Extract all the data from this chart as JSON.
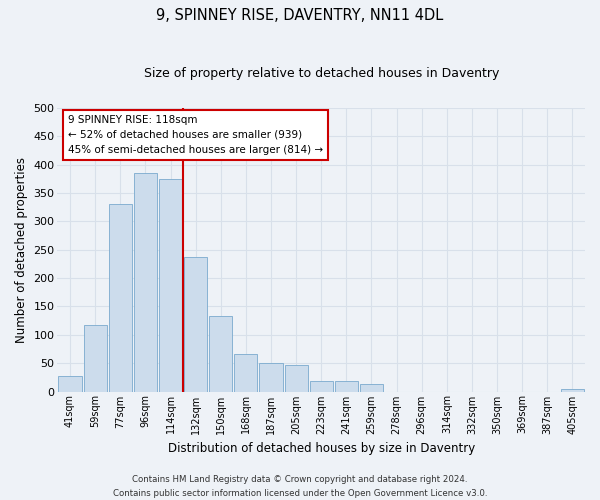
{
  "title": "9, SPINNEY RISE, DAVENTRY, NN11 4DL",
  "subtitle": "Size of property relative to detached houses in Daventry",
  "xlabel": "Distribution of detached houses by size in Daventry",
  "ylabel": "Number of detached properties",
  "bar_color": "#ccdcec",
  "bar_edge_color": "#7aaace",
  "background_color": "#eef2f7",
  "grid_color": "#d8e0ea",
  "categories": [
    "41sqm",
    "59sqm",
    "77sqm",
    "96sqm",
    "114sqm",
    "132sqm",
    "150sqm",
    "168sqm",
    "187sqm",
    "205sqm",
    "223sqm",
    "241sqm",
    "259sqm",
    "278sqm",
    "296sqm",
    "314sqm",
    "332sqm",
    "350sqm",
    "369sqm",
    "387sqm",
    "405sqm"
  ],
  "values": [
    27,
    117,
    330,
    385,
    375,
    237,
    133,
    67,
    50,
    46,
    19,
    19,
    13,
    0,
    0,
    0,
    0,
    0,
    0,
    0,
    5
  ],
  "ylim": [
    0,
    500
  ],
  "yticks": [
    0,
    50,
    100,
    150,
    200,
    250,
    300,
    350,
    400,
    450,
    500
  ],
  "vline_x_idx": 4,
  "vline_color": "#cc0000",
  "annotation_text": "9 SPINNEY RISE: 118sqm\n← 52% of detached houses are smaller (939)\n45% of semi-detached houses are larger (814) →",
  "annotation_box_facecolor": "#ffffff",
  "annotation_box_edgecolor": "#cc0000",
  "footer_line1": "Contains HM Land Registry data © Crown copyright and database right 2024.",
  "footer_line2": "Contains public sector information licensed under the Open Government Licence v3.0."
}
